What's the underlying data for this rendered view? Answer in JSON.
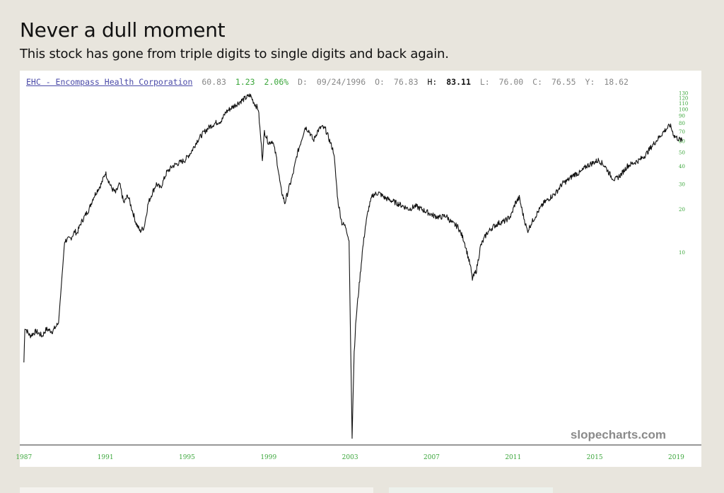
{
  "page": {
    "title": "Never a dull moment",
    "subtitle": "This stock has gone from triple digits to single digits and back again."
  },
  "info_bar": {
    "ticker": "EHC - Encompass Health Corporation",
    "last": "60.83",
    "change": "1.23",
    "change_pct": "2.06%",
    "date_label": "D:",
    "date": "09/24/1996",
    "open_label": "O:",
    "open": "76.83",
    "high_label": "H:",
    "high": "83.11",
    "low_label": "L:",
    "low": "76.00",
    "close_label": "C:",
    "close": "76.55",
    "y_label": "Y:",
    "y": "18.62"
  },
  "watermark": "slopecharts.com",
  "colors": {
    "line": "#111111",
    "axis_text": "#3aa63a",
    "ticker": "#4a4aa8",
    "background": "#e8e5dd"
  },
  "chart_data": {
    "type": "line",
    "title": "",
    "xlabel": "",
    "ylabel": "",
    "y_scale": "log",
    "ylim": [
      0.45,
      135
    ],
    "xlim": [
      1986.8,
      2019.4
    ],
    "x_ticks": [
      "1987",
      "1991",
      "1995",
      "1999",
      "2003",
      "2007",
      "2011",
      "2015",
      "2019"
    ],
    "y_ticks": [
      "130",
      "120",
      "110",
      "100",
      "90",
      "80",
      "70",
      "60",
      "50",
      "40",
      "30",
      "20",
      "10"
    ],
    "legend": "none",
    "grid": false,
    "series": [
      {
        "x": [
          1987.0,
          1987.05,
          1987.1,
          1987.3,
          1987.6,
          1987.9,
          1988.1,
          1988.4,
          1988.7,
          1989.0,
          1989.3,
          1989.5,
          1989.6,
          1989.8,
          1990.0,
          1990.2,
          1990.4,
          1990.6,
          1990.8,
          1991.0,
          1991.3,
          1991.5,
          1991.7,
          1991.9,
          1992.1,
          1992.3,
          1992.5,
          1992.7,
          1992.9,
          1993.1,
          1993.3,
          1993.5,
          1993.7,
          1994.0,
          1994.3,
          1994.6,
          1994.9,
          1995.2,
          1995.5,
          1995.8,
          1996.1,
          1996.4,
          1996.7,
          1996.9,
          1997.1,
          1997.3,
          1997.5,
          1997.7,
          1997.9,
          1998.1,
          1998.3,
          1998.5,
          1998.7,
          1998.8,
          1999.0,
          1999.2,
          1999.4,
          1999.6,
          1999.8,
          2000.0,
          2000.2,
          2000.4,
          2000.6,
          2000.8,
          2001.0,
          2001.2,
          2001.4,
          2001.6,
          2001.8,
          2002.0,
          2002.2,
          2002.4,
          2002.6,
          2002.8,
          2002.95,
          2003.1,
          2003.2,
          2003.3,
          2003.4,
          2003.5,
          2003.6,
          2003.75,
          2003.9,
          2004.1,
          2004.4,
          2004.7,
          2005.0,
          2005.3,
          2005.6,
          2005.9,
          2006.2,
          2006.5,
          2006.8,
          2007.1,
          2007.4,
          2007.7,
          2008.0,
          2008.3,
          2008.6,
          2008.9,
          2009.0,
          2009.2,
          2009.4,
          2009.7,
          2010.0,
          2010.3,
          2010.6,
          2010.9,
          2011.1,
          2011.3,
          2011.5,
          2011.7,
          2011.9,
          2012.2,
          2012.5,
          2012.8,
          2013.1,
          2013.4,
          2013.7,
          2014.0,
          2014.3,
          2014.6,
          2014.9,
          2015.2,
          2015.5,
          2015.8,
          2016.0,
          2016.3,
          2016.6,
          2016.9,
          2017.2,
          2017.5,
          2017.8,
          2018.1,
          2018.4,
          2018.7,
          2018.9,
          2019.1,
          2019.3
        ],
        "values": [
          1.7,
          3.0,
          2.9,
          2.6,
          2.8,
          2.6,
          2.9,
          2.8,
          3.2,
          12.0,
          12.5,
          14.0,
          13.5,
          16.0,
          18.0,
          20.0,
          24.0,
          27.0,
          30.0,
          36.0,
          28.0,
          26.0,
          30.0,
          22.0,
          25.0,
          20.0,
          16.0,
          14.0,
          15.0,
          22.0,
          26.0,
          30.0,
          28.0,
          36.0,
          40.0,
          42.0,
          44.0,
          50.0,
          60.0,
          68.0,
          75.0,
          80.0,
          83.0,
          95.0,
          100.0,
          105.0,
          110.0,
          115.0,
          120.0,
          125.0,
          110.0,
          100.0,
          45.0,
          70.0,
          58.0,
          60.0,
          45.0,
          28.0,
          22.0,
          28.0,
          35.0,
          48.0,
          60.0,
          75.0,
          70.0,
          60.0,
          70.0,
          75.0,
          72.0,
          60.0,
          50.0,
          23.0,
          16.0,
          15.0,
          12.0,
          0.5,
          2.0,
          3.5,
          5.0,
          7.0,
          10.0,
          15.0,
          20.0,
          25.0,
          26.0,
          24.0,
          23.0,
          22.0,
          21.0,
          20.0,
          21.0,
          20.0,
          19.0,
          18.0,
          17.5,
          18.0,
          16.0,
          15.0,
          12.0,
          8.0,
          6.5,
          7.5,
          11.0,
          13.5,
          15.0,
          16.0,
          16.5,
          18.0,
          22.0,
          24.0,
          18.0,
          14.0,
          16.0,
          19.0,
          22.0,
          24.0,
          26.0,
          30.0,
          32.0,
          35.0,
          36.0,
          40.0,
          42.0,
          44.0,
          40.0,
          34.0,
          32.0,
          35.0,
          40.0,
          42.0,
          44.0,
          48.0,
          55.0,
          62.0,
          70.0,
          77.0,
          65.0,
          62.0,
          60.0
        ]
      }
    ]
  }
}
